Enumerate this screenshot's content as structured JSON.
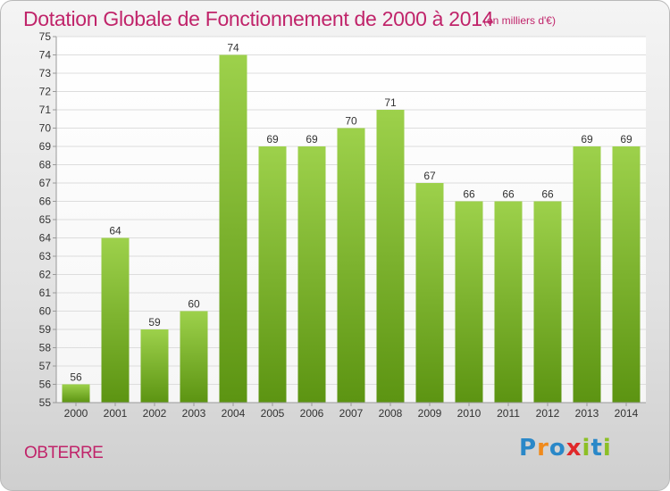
{
  "header": {
    "title": "Dotation Globale de Fonctionnement de 2000 à 2014",
    "subtitle": "(en milliers d'€)"
  },
  "footer": {
    "commune": "OBTERRE",
    "logo_text": "Proxiti",
    "logo_letters": [
      "P",
      "r",
      "o",
      "x",
      "i",
      "t",
      "i"
    ],
    "logo_colors": [
      "#2a88c8",
      "#f08a1c",
      "#2a88c8",
      "#e0282a",
      "#8cbf26",
      "#2a88c8",
      "#8cbf26"
    ]
  },
  "colors": {
    "title": "#c0246a",
    "bar_light": "#9dd14b",
    "bar_dark": "#5c9412",
    "plot_background": "#ffffff",
    "grid": "#dddddd"
  },
  "chart_data": {
    "type": "bar",
    "title": "Dotation Globale de Fonctionnement de 2000 à 2014",
    "subtitle": "(en milliers d'€)",
    "categories": [
      "2000",
      "2001",
      "2002",
      "2003",
      "2004",
      "2005",
      "2006",
      "2007",
      "2008",
      "2009",
      "2010",
      "2011",
      "2012",
      "2013",
      "2014"
    ],
    "values": [
      56,
      64,
      59,
      60,
      74,
      69,
      69,
      70,
      71,
      67,
      66,
      66,
      66,
      69,
      69
    ],
    "ylim": [
      55,
      75
    ],
    "ytick_step": 1,
    "grid": true,
    "data_labels": true
  }
}
